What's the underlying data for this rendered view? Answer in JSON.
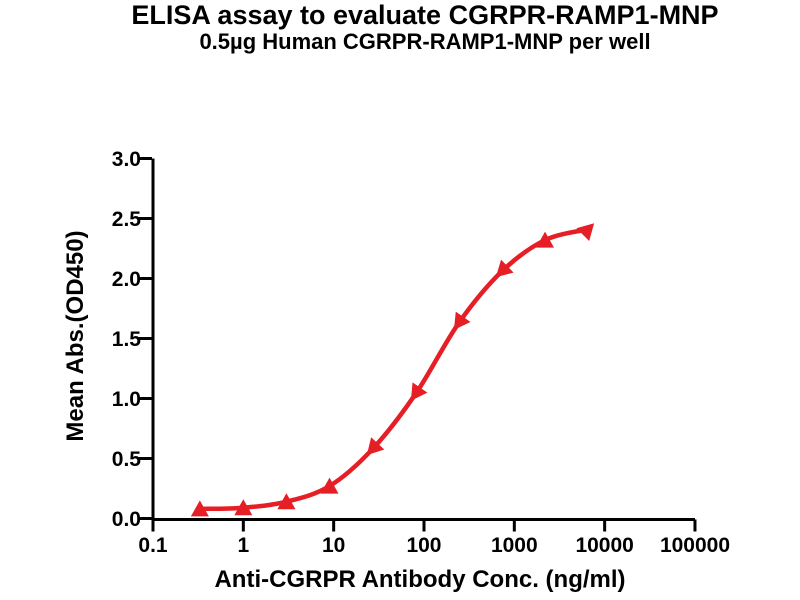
{
  "chart_data": {
    "type": "line",
    "title": "ELISA assay to evaluate CGRPR-RAMP1-MNP",
    "subtitle": "0.5µg Human CGRPR-RAMP1-MNP per well",
    "xlabel": "Anti-CGRPR Antibody Conc. (ng/ml)",
    "ylabel": "Mean Abs.(OD450)",
    "x_scale": "log10",
    "xlim": [
      0.1,
      100000
    ],
    "ylim": [
      0.0,
      3.0
    ],
    "x_tick_values": [
      0.1,
      1,
      10,
      100,
      1000,
      10000,
      100000
    ],
    "x_tick_labels": [
      "0.1",
      "1",
      "10",
      "100",
      "1000",
      "10000",
      "100000"
    ],
    "y_tick_values": [
      0.0,
      0.5,
      1.0,
      1.5,
      2.0,
      2.5,
      3.0
    ],
    "y_tick_labels": [
      "0.0",
      "0.5",
      "1.0",
      "1.5",
      "2.0",
      "2.5",
      "3.0"
    ],
    "grid": false,
    "legend": "none",
    "series": [
      {
        "marker": "filled-triangle",
        "color": "#e61e25",
        "x": [
          0.33,
          1,
          3,
          9,
          27,
          81,
          243,
          729,
          2187,
          6561
        ],
        "y": [
          0.08,
          0.09,
          0.14,
          0.27,
          0.58,
          1.04,
          1.63,
          2.06,
          2.32,
          2.41
        ]
      }
    ]
  },
  "colors": {
    "curve": "#e61e25",
    "axis": "#000000",
    "text": "#000000",
    "background": "#ffffff"
  }
}
